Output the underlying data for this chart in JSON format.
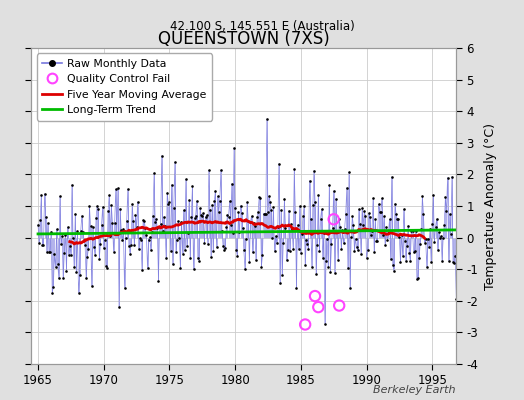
{
  "title": "QUEENSTOWN (7XS)",
  "subtitle": "42.100 S, 145.551 E (Australia)",
  "watermark": "Berkeley Earth",
  "ylabel": "Temperature Anomaly (°C)",
  "xlim": [
    1964.5,
    1996.8
  ],
  "ylim": [
    -4,
    6
  ],
  "yticks": [
    -4,
    -3,
    -2,
    -1,
    0,
    1,
    2,
    3,
    4,
    5,
    6
  ],
  "xticks": [
    1965,
    1970,
    1975,
    1980,
    1985,
    1990,
    1995
  ],
  "fig_bg_color": "#e0e0e0",
  "plot_bg_color": "#ffffff",
  "line_color": "#7777dd",
  "dot_color": "#000000",
  "moving_avg_color": "#dd0000",
  "trend_color": "#00bb00",
  "qc_fail_color": "#ff44ff",
  "legend_items": [
    "Raw Monthly Data",
    "Quality Control Fail",
    "Five Year Moving Average",
    "Long-Term Trend"
  ],
  "seed": 42,
  "n_years": 32,
  "start_year": 1965,
  "qc_fail_points": [
    [
      1985.33,
      -2.75
    ],
    [
      1986.08,
      -1.85
    ],
    [
      1986.33,
      -2.2
    ],
    [
      1987.5,
      0.58
    ],
    [
      1987.92,
      -2.15
    ]
  ]
}
